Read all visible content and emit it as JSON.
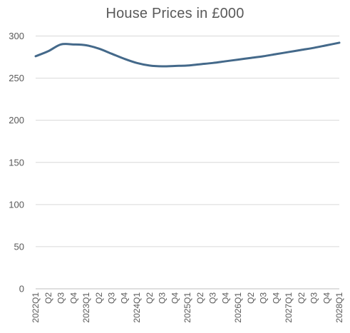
{
  "chart_data": {
    "type": "line",
    "title": "House Prices in £000",
    "xlabel": "",
    "ylabel": "",
    "ylim": [
      0,
      300
    ],
    "yticks": [
      0,
      50,
      100,
      150,
      200,
      250,
      300
    ],
    "categories": [
      "2022Q1",
      "Q2",
      "Q3",
      "Q4",
      "2023Q1",
      "Q2",
      "Q3",
      "Q4",
      "2024Q1",
      "Q2",
      "Q3",
      "Q4",
      "2025Q1",
      "Q2",
      "Q3",
      "Q4",
      "2026Q1",
      "Q2",
      "Q3",
      "Q4",
      "2027Q1",
      "Q2",
      "Q3",
      "Q4",
      "2028Q1"
    ],
    "series": [
      {
        "values": [
          276,
          282,
          290,
          290,
          289,
          285,
          279,
          273,
          268,
          265,
          264,
          264.5,
          265,
          266.5,
          268,
          270,
          272,
          274,
          276,
          278.5,
          281,
          283.5,
          286,
          289,
          292
        ]
      }
    ],
    "grid": true,
    "legend": "none",
    "colors": {
      "line": "#44698A",
      "grid": "#D9D9D9",
      "axis": "#BFBFBF",
      "tick_text": "#595959",
      "title": "#595959"
    }
  }
}
